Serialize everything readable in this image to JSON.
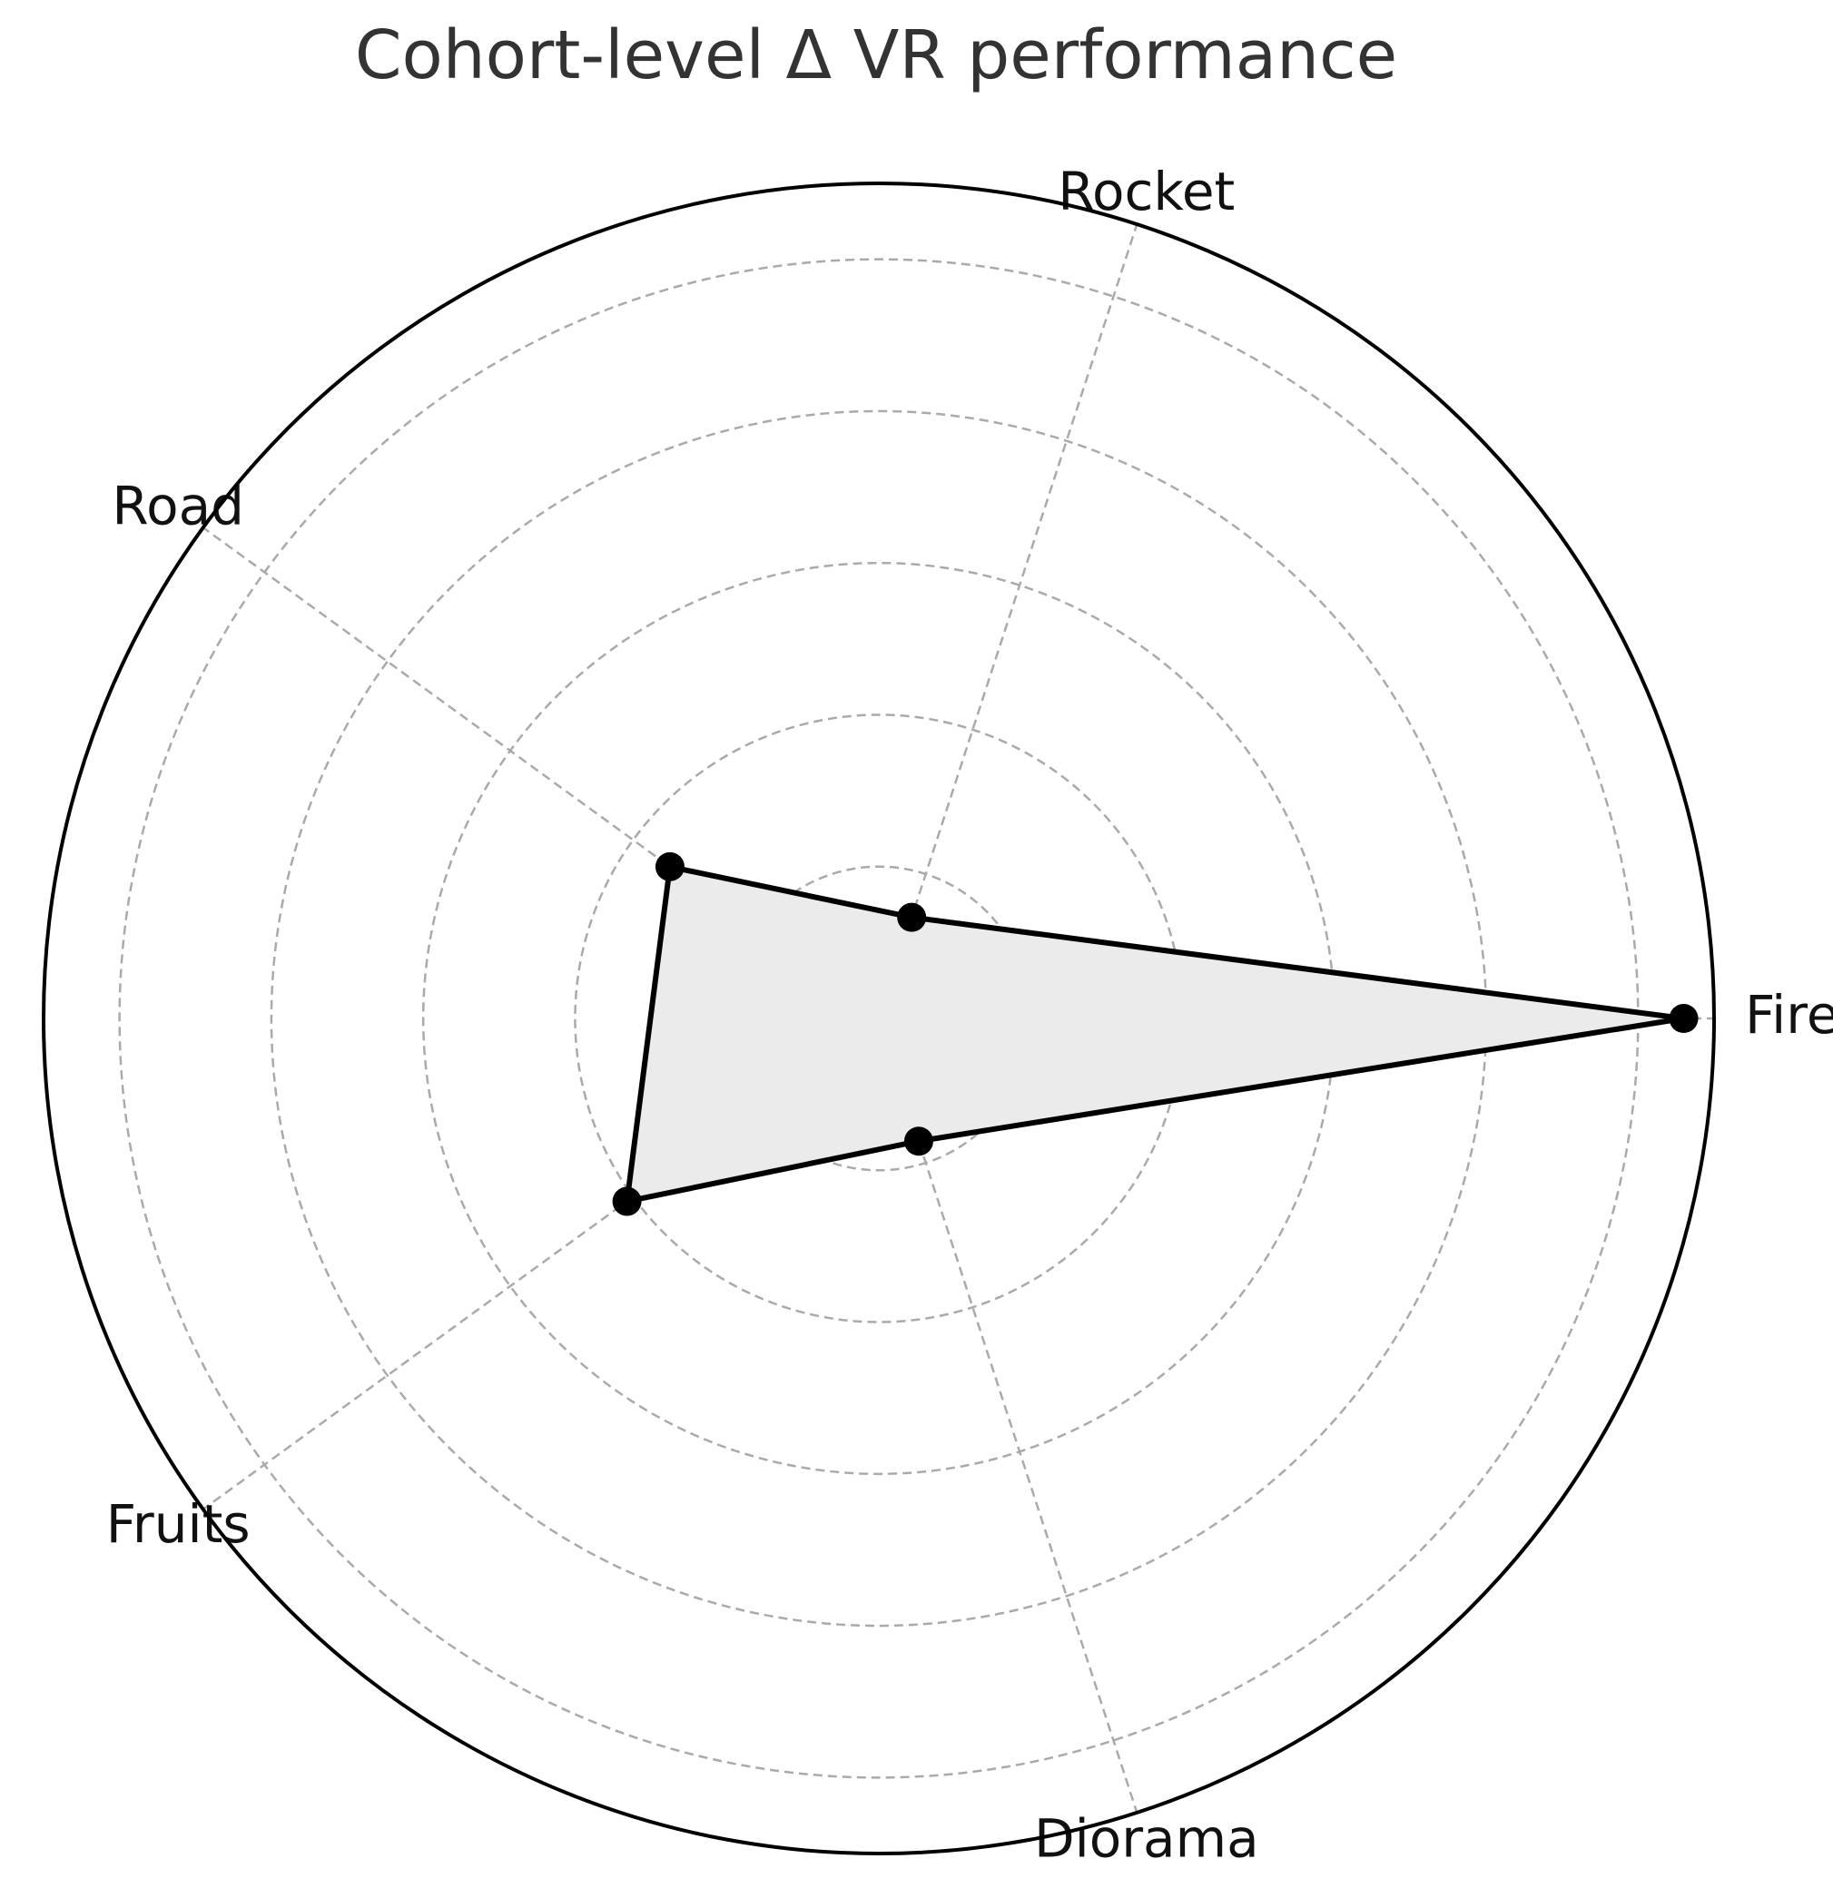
{
  "chart_data": {
    "type": "radar",
    "title": "Cohort-level Δ VR performance",
    "categories": [
      "Fire",
      "Rocket",
      "Road",
      "Fruits",
      "Diorama"
    ],
    "series": [
      {
        "values": [
          0.48,
          0.02,
          0.12,
          0.155,
          0.035
        ]
      }
    ],
    "rlim": [
      -0.05,
      0.5
    ],
    "ring_values": [
      0.05,
      0.15,
      0.25,
      0.35,
      0.45
    ],
    "grid": true,
    "colors": {
      "line": "#000000",
      "fill": "#ebebeb",
      "grid": "#aaaaaa",
      "frame": "#000000"
    }
  }
}
